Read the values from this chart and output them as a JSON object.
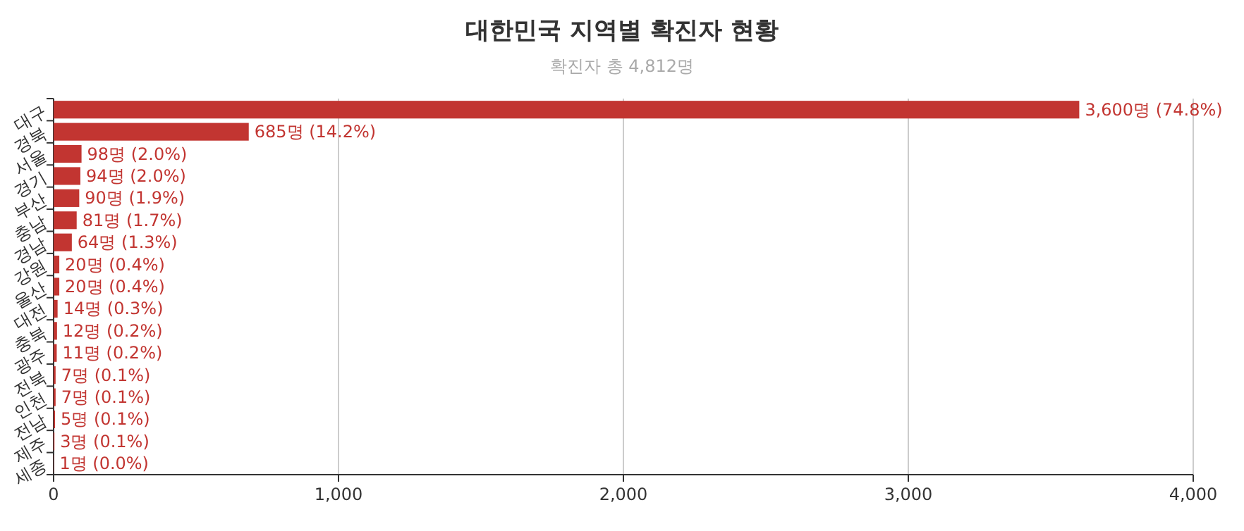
{
  "chart_data": {
    "type": "bar",
    "orientation": "horizontal",
    "title": "대한민국 지역별 확진자 현황",
    "subtitle": "확진자 총 4,812명",
    "categories": [
      "대구",
      "경북",
      "서울",
      "경기",
      "부산",
      "충남",
      "경남",
      "강원",
      "울산",
      "대전",
      "충북",
      "광주",
      "전북",
      "인천",
      "전남",
      "제주",
      "세종"
    ],
    "values": [
      3600,
      685,
      98,
      94,
      90,
      81,
      64,
      20,
      20,
      14,
      12,
      11,
      7,
      7,
      5,
      3,
      1
    ],
    "value_labels": [
      "3,600명 (74.8%)",
      "685명 (14.2%)",
      "98명 (2.0%)",
      "94명 (2.0%)",
      "90명 (1.9%)",
      "81명 (1.7%)",
      "64명 (1.3%)",
      "20명 (0.4%)",
      "20명 (0.4%)",
      "14명 (0.3%)",
      "12명 (0.2%)",
      "11명 (0.2%)",
      "7명 (0.1%)",
      "7명 (0.1%)",
      "5명 (0.1%)",
      "3명 (0.1%)",
      "1명 (0.0%)"
    ],
    "color": "#c23531",
    "xlim": [
      0,
      4000
    ],
    "xticks": [
      0,
      {
        "value": 1000,
        "label": "1,000"
      },
      {
        "value": 2000,
        "label": "2,000"
      },
      {
        "value": 3000,
        "label": "3,000"
      },
      {
        "value": 4000,
        "label": "4,000"
      }
    ],
    "grid": "x"
  }
}
